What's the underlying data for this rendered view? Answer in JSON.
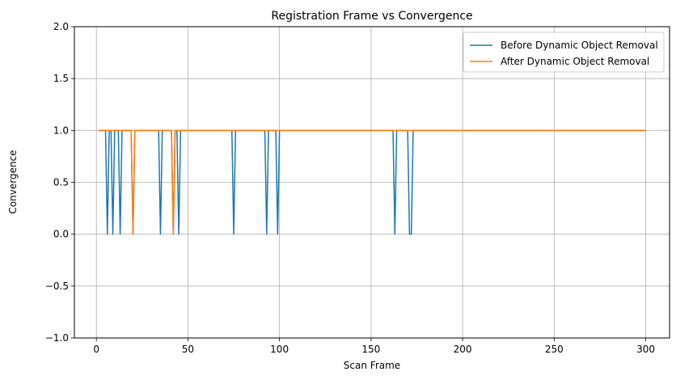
{
  "chart_data": {
    "type": "line",
    "title": "Registration Frame vs Convergence",
    "xlabel": "Scan Frame",
    "ylabel": "Convergence",
    "xlim": [
      -12,
      313
    ],
    "ylim": [
      -1.0,
      2.0
    ],
    "xticks": [
      0,
      50,
      100,
      150,
      200,
      250,
      300
    ],
    "yticks": [
      -1.0,
      -0.5,
      0.0,
      0.5,
      1.0,
      1.5,
      2.0
    ],
    "xtick_labels": [
      "0",
      "50",
      "100",
      "150",
      "200",
      "250",
      "300"
    ],
    "ytick_labels": [
      "−1.0",
      "−0.5",
      "0.0",
      "0.5",
      "1.0",
      "1.5",
      "2.0"
    ],
    "grid": true,
    "legend_position": "top-right",
    "x_range": [
      1,
      300
    ],
    "series": [
      {
        "name": "Before Dynamic Object Removal",
        "color": "#1f77b4",
        "default_value": 1,
        "zero_frames": [
          6,
          9,
          13,
          20,
          35,
          42,
          45,
          75,
          93,
          99,
          163,
          171,
          172
        ]
      },
      {
        "name": "After Dynamic Object Removal",
        "color": "#ff7f0e",
        "default_value": 1,
        "zero_frames": [
          20,
          42
        ]
      }
    ]
  }
}
